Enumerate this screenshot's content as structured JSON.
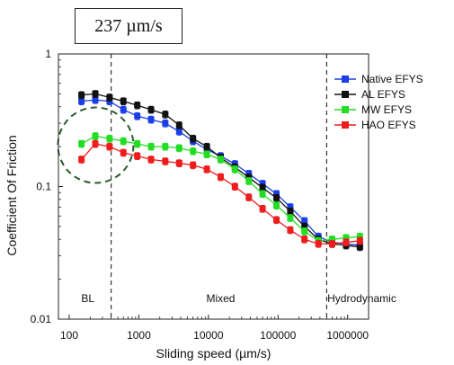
{
  "speed_box": "237 µm/s",
  "chart_data": {
    "type": "line",
    "x_scale": "log",
    "y_scale": "log",
    "xlabel": "Sliding speed (µm/s)",
    "ylabel": "Coefficient Of Friction",
    "xlim": [
      70,
      2000000
    ],
    "ylim": [
      0.01,
      1
    ],
    "x_ticks": [
      100,
      1000,
      10000,
      100000,
      1000000
    ],
    "x_tick_labels": [
      "100",
      "1000",
      "10000",
      "100000",
      "1000000"
    ],
    "y_ticks": [
      0.01,
      0.1,
      1
    ],
    "y_tick_labels": [
      "0.01",
      "0.1",
      "1"
    ],
    "grid": false,
    "legend_position": "top-right",
    "regime_boundaries": [
      400,
      500000
    ],
    "regime_labels": [
      {
        "text": "BL",
        "x": 185
      },
      {
        "text": "Mixed",
        "x": 15000
      },
      {
        "text": "Hydrodynamic",
        "x": 1600000
      }
    ],
    "x": [
      150,
      237,
      380,
      600,
      950,
      1500,
      2400,
      3800,
      6000,
      9500,
      15000,
      24000,
      38000,
      60000,
      95000,
      150000,
      240000,
      380000,
      600000,
      950000,
      1500000
    ],
    "series": [
      {
        "name": "Native EFYS",
        "color": "#1a3ee8",
        "values": [
          0.44,
          0.45,
          0.44,
          0.38,
          0.34,
          0.32,
          0.3,
          0.26,
          0.22,
          0.19,
          0.17,
          0.148,
          0.125,
          0.105,
          0.088,
          0.07,
          0.055,
          0.042,
          0.038,
          0.037,
          0.036
        ]
      },
      {
        "name": "AL EFYS",
        "color": "#111111",
        "values": [
          0.49,
          0.5,
          0.47,
          0.44,
          0.41,
          0.38,
          0.35,
          0.29,
          0.23,
          0.2,
          0.165,
          0.14,
          0.117,
          0.098,
          0.082,
          0.065,
          0.05,
          0.04,
          0.037,
          0.036,
          0.035
        ]
      },
      {
        "name": "MW EFYS",
        "color": "#22dd22",
        "values": [
          0.21,
          0.24,
          0.23,
          0.22,
          0.21,
          0.2,
          0.2,
          0.195,
          0.185,
          0.175,
          0.16,
          0.135,
          0.11,
          0.088,
          0.072,
          0.058,
          0.046,
          0.039,
          0.04,
          0.041,
          0.042
        ]
      },
      {
        "name": "HAO EFYS",
        "color": "#ee1c1c",
        "values": [
          0.16,
          0.21,
          0.2,
          0.18,
          0.17,
          0.16,
          0.155,
          0.15,
          0.145,
          0.135,
          0.118,
          0.1,
          0.083,
          0.068,
          0.056,
          0.047,
          0.04,
          0.037,
          0.037,
          0.038,
          0.039
        ]
      }
    ],
    "error_bar_fraction": 0.06
  }
}
